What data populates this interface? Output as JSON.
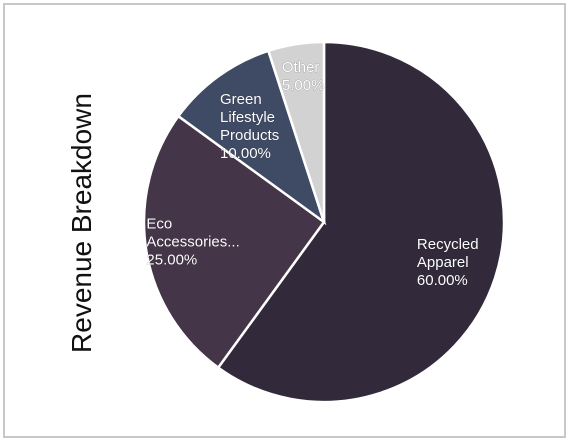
{
  "chart_data": {
    "type": "pie",
    "title": "Revenue Breakdown",
    "slices": [
      {
        "name": "Recycled Apparel",
        "value": 60.0,
        "label": [
          "Recycled",
          "Apparel",
          "60.00%"
        ],
        "color": "#322a3a"
      },
      {
        "name": "Eco Accessories...",
        "value": 25.0,
        "label": [
          "Eco",
          "Accessories...",
          "25.00%"
        ],
        "color": "#453548"
      },
      {
        "name": "Green Lifestyle Products",
        "value": 10.0,
        "label": [
          "Green",
          "Lifestyle",
          "Products",
          "10.00%"
        ],
        "color": "#3f4a64"
      },
      {
        "name": "Other",
        "value": 5.0,
        "label": [
          "Other",
          "5.00%"
        ],
        "color": "#d2d2d2"
      }
    ],
    "start_angle_deg": 0,
    "direction": "clockwise",
    "legend": "none"
  }
}
